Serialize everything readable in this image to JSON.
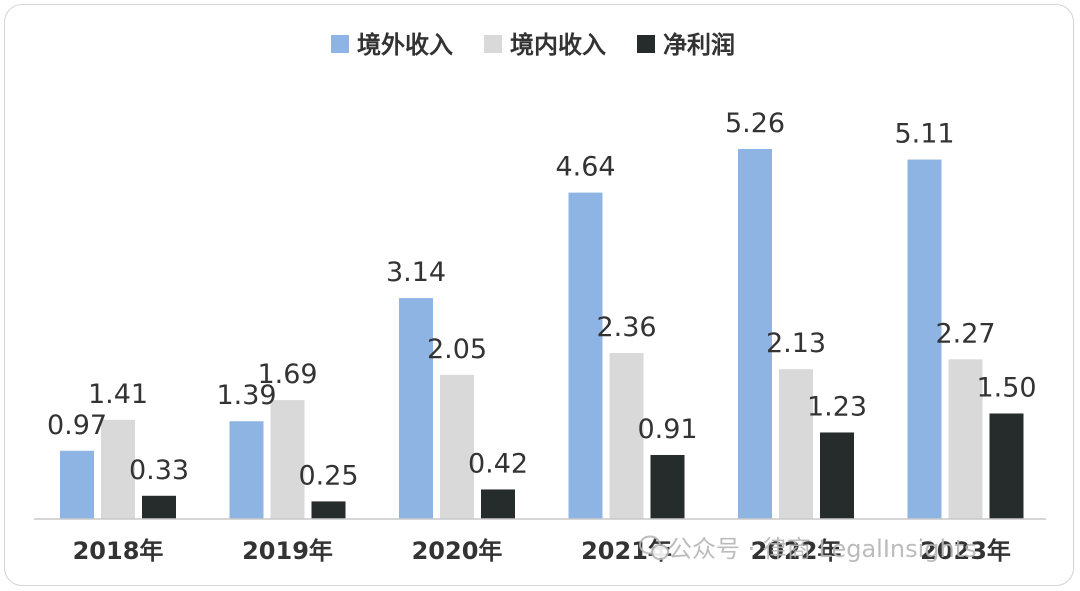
{
  "chart_data": {
    "type": "bar",
    "categories": [
      "2018年",
      "2019年",
      "2020年",
      "2021年",
      "2022年",
      "2023年"
    ],
    "series": [
      {
        "name": "境外收入",
        "values": [
          0.97,
          1.39,
          3.14,
          4.64,
          5.26,
          5.11
        ],
        "labels": [
          "0.97",
          "1.39",
          "3.14",
          "4.64",
          "5.26",
          "5.11"
        ],
        "color": "#8EB4E3"
      },
      {
        "name": "境内收入",
        "values": [
          1.41,
          1.69,
          2.05,
          2.36,
          2.13,
          2.27
        ],
        "labels": [
          "1.41",
          "1.69",
          "2.05",
          "2.36",
          "2.13",
          "2.27"
        ],
        "color": "#D9D9D9"
      },
      {
        "name": "净利润",
        "values": [
          0.33,
          0.25,
          0.42,
          0.91,
          1.23,
          1.5
        ],
        "labels": [
          "0.33",
          "0.25",
          "0.42",
          "0.91",
          "1.23",
          "1.50"
        ],
        "color": "#262B2B"
      }
    ],
    "ylim": [
      0,
      5.26
    ],
    "legend_position": "top-center",
    "grid": false
  },
  "watermark": {
    "icon": "wechat-icon",
    "text": "公众号 · 律商 LegalInsights"
  }
}
